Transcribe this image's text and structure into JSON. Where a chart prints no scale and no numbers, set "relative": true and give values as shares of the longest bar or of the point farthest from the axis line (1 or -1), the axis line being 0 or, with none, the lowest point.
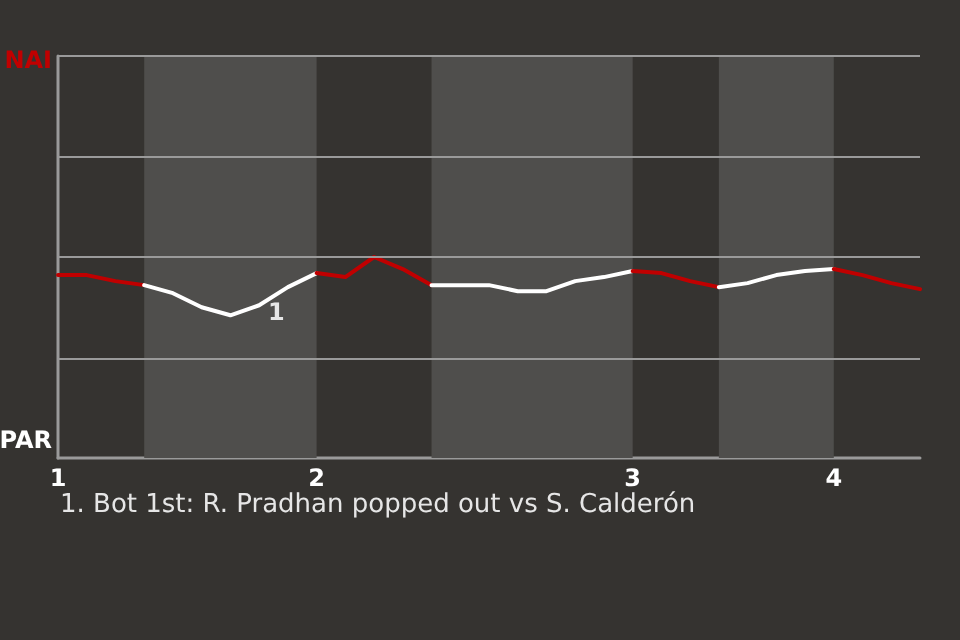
{
  "chart_data": {
    "type": "line",
    "relative": true,
    "categories": [
      "1",
      null,
      null,
      null,
      null,
      null,
      null,
      null,
      null,
      "2",
      null,
      null,
      null,
      null,
      null,
      null,
      null,
      null,
      null,
      null,
      "3",
      null,
      null,
      null,
      null,
      null,
      null,
      "4",
      null,
      null,
      null
    ],
    "marker": "none",
    "line_style": "solid",
    "ref_lines": [
      {
        "axis": "y",
        "value": 0.5
      },
      {
        "axis": "y",
        "value": 1
      },
      {
        "axis": "y",
        "value": 1.5
      }
    ],
    "series": [
      {
        "color": "#c00000",
        "values": [
          0.91,
          0.91,
          0.88,
          0.86,
          null,
          null,
          null,
          null,
          null,
          null,
          null,
          null,
          null,
          null,
          null,
          null,
          null,
          null,
          null,
          null,
          null,
          null,
          null,
          null,
          null,
          null,
          null,
          null,
          null,
          null,
          null
        ]
      },
      {
        "color": "#ffffff",
        "values": [
          null,
          null,
          null,
          0.86,
          0.82,
          0.75,
          0.71,
          0.76,
          0.85,
          0.92,
          null,
          null,
          null,
          null,
          null,
          null,
          null,
          null,
          null,
          null,
          null,
          null,
          null,
          null,
          null,
          null,
          null,
          null,
          null,
          null,
          null
        ]
      },
      {
        "color": "#c00000",
        "values": [
          null,
          null,
          null,
          null,
          null,
          null,
          null,
          null,
          null,
          0.92,
          0.9,
          1,
          0.94,
          0.86,
          null,
          null,
          null,
          null,
          null,
          null,
          null,
          null,
          null,
          null,
          null,
          null,
          null,
          null,
          null,
          null,
          null
        ]
      },
      {
        "color": "#ffffff",
        "values": [
          null,
          null,
          null,
          null,
          null,
          null,
          null,
          null,
          null,
          null,
          null,
          null,
          null,
          0.86,
          0.86,
          0.86,
          0.83,
          0.83,
          0.88,
          0.9,
          0.93,
          null,
          null,
          null,
          null,
          null,
          null,
          null,
          null,
          null,
          null
        ]
      },
      {
        "color": "#c00000",
        "values": [
          null,
          null,
          null,
          null,
          null,
          null,
          null,
          null,
          null,
          null,
          null,
          null,
          null,
          null,
          null,
          null,
          null,
          null,
          null,
          null,
          0.93,
          0.92,
          0.88,
          0.85,
          null,
          null,
          null,
          null,
          null,
          null,
          null
        ]
      },
      {
        "color": "#ffffff",
        "values": [
          null,
          null,
          null,
          null,
          null,
          null,
          null,
          null,
          null,
          null,
          null,
          null,
          null,
          null,
          null,
          null,
          null,
          null,
          null,
          null,
          null,
          null,
          null,
          0.85,
          0.87,
          0.91,
          0.93,
          0.94,
          null,
          null,
          null
        ]
      },
      {
        "color": "#c00000",
        "values": [
          null,
          null,
          null,
          null,
          null,
          null,
          null,
          null,
          null,
          null,
          null,
          null,
          null,
          null,
          null,
          null,
          null,
          null,
          null,
          null,
          null,
          null,
          null,
          null,
          null,
          null,
          null,
          0.94,
          0.91,
          0.87,
          0.84
        ]
      }
    ],
    "annotations": [
      "NAI",
      "PAR",
      "1",
      "1. Bot 1st: R. Pradhan popped out vs S. Calderón"
    ]
  }
}
